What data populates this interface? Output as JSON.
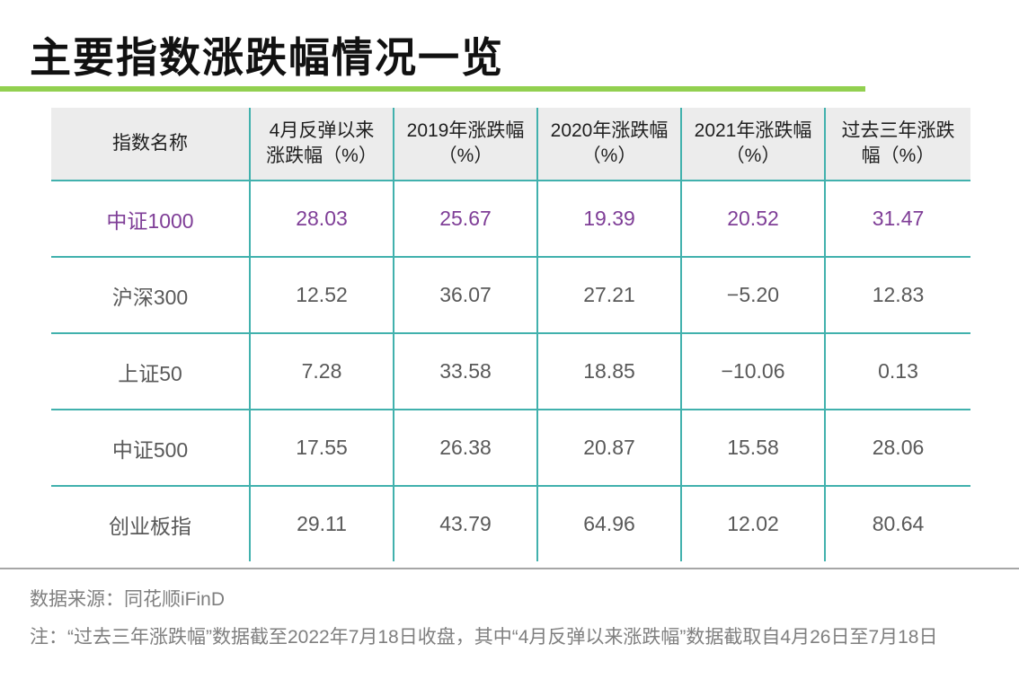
{
  "page": {
    "title": "主要指数涨跌幅情况一览",
    "source_label": "数据来源：同花顺iFinD",
    "note": "注：“过去三年涨跌幅”数据截至2022年7月18日收盘，其中“4月反弹以来涨跌幅”数据截取自4月26日至7月18日"
  },
  "colors": {
    "accent_green": "#92d050",
    "divider_teal": "#41b1ad",
    "highlight_purple": "#7f3e97",
    "header_bg": "#ececec",
    "data_text": "#595959",
    "footer_text": "#7f7f7f",
    "separator_gray": "#a6a6a6"
  },
  "table": {
    "headers": [
      {
        "line1": "指数名称",
        "line2": ""
      },
      {
        "line1": "4月反弹以来",
        "line2": "涨跌幅（%）"
      },
      {
        "line1": "2019年涨跌幅",
        "line2": "（%）"
      },
      {
        "line1": "2020年涨跌幅",
        "line2": "（%）"
      },
      {
        "line1": "2021年涨跌幅",
        "line2": "（%）"
      },
      {
        "line1": "过去三年涨跌",
        "line2": "幅（%）"
      }
    ],
    "rows": [
      {
        "cells": [
          "中证1000",
          "28.03",
          "25.67",
          "19.39",
          "20.52",
          "31.47"
        ]
      },
      {
        "cells": [
          "沪深300",
          "12.52",
          "36.07",
          "27.21",
          "−5.20",
          "12.83"
        ]
      },
      {
        "cells": [
          "上证50",
          "7.28",
          "33.58",
          "18.85",
          "−10.06",
          "0.13"
        ]
      },
      {
        "cells": [
          "中证500",
          "17.55",
          "26.38",
          "20.87",
          "15.58",
          "28.06"
        ]
      },
      {
        "cells": [
          "创业板指",
          "29.11",
          "43.79",
          "64.96",
          "12.02",
          "80.64"
        ]
      }
    ]
  },
  "chart_data": {
    "type": "table",
    "title": "主要指数涨跌幅情况一览",
    "columns": [
      "指数名称",
      "4月反弹以来涨跌幅（%）",
      "2019年涨跌幅（%）",
      "2020年涨跌幅（%）",
      "2021年涨跌幅（%）",
      "过去三年涨跌幅（%）"
    ],
    "rows": [
      {
        "name": "中证1000",
        "values": [
          28.03,
          25.67,
          19.39,
          20.52,
          31.47
        ],
        "highlighted": true
      },
      {
        "name": "沪深300",
        "values": [
          12.52,
          36.07,
          27.21,
          -5.2,
          12.83
        ],
        "highlighted": false
      },
      {
        "name": "上证50",
        "values": [
          7.28,
          33.58,
          18.85,
          -10.06,
          0.13
        ],
        "highlighted": false
      },
      {
        "name": "中证500",
        "values": [
          17.55,
          26.38,
          20.87,
          15.58,
          28.06
        ],
        "highlighted": false
      },
      {
        "name": "创业板指",
        "values": [
          29.11,
          43.79,
          64.96,
          12.02,
          80.64
        ],
        "highlighted": false
      }
    ],
    "notes": [
      "数据来源：同花顺iFinD",
      "注：“过去三年涨跌幅”数据截至2022年7月18日收盘，其中“4月反弹以来涨跌幅”数据截取自4月26日至7月18日"
    ]
  }
}
